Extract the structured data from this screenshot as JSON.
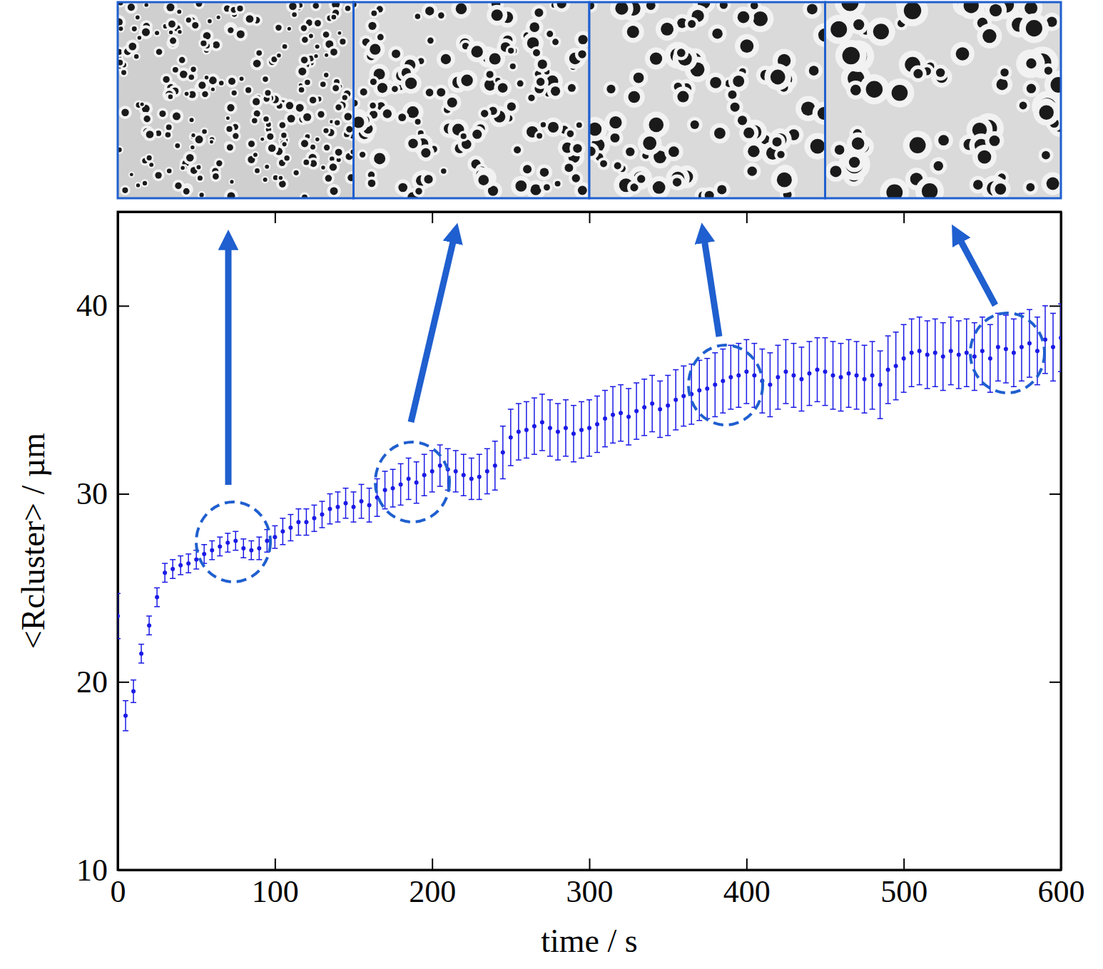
{
  "chart_data": {
    "type": "scatter",
    "xlabel": "time / s",
    "ylabel": "<Rcluster> / µm",
    "xlim": [
      0,
      600
    ],
    "xticks": [
      0,
      100,
      200,
      300,
      400,
      500,
      600
    ],
    "ylim": [
      10,
      45
    ],
    "yticks": [
      10,
      20,
      30,
      40
    ],
    "x": [
      0,
      5,
      10,
      15,
      20,
      25,
      30,
      35,
      40,
      45,
      50,
      55,
      60,
      65,
      70,
      75,
      80,
      85,
      90,
      95,
      100,
      105,
      110,
      115,
      120,
      125,
      130,
      135,
      140,
      145,
      150,
      155,
      160,
      165,
      170,
      175,
      180,
      185,
      190,
      195,
      200,
      205,
      210,
      215,
      220,
      225,
      230,
      235,
      240,
      245,
      250,
      255,
      260,
      265,
      270,
      275,
      280,
      285,
      290,
      295,
      300,
      305,
      310,
      315,
      320,
      325,
      330,
      335,
      340,
      345,
      350,
      355,
      360,
      365,
      370,
      375,
      380,
      385,
      390,
      395,
      400,
      405,
      410,
      415,
      420,
      425,
      430,
      435,
      440,
      445,
      450,
      455,
      460,
      465,
      470,
      475,
      480,
      485,
      490,
      495,
      500,
      505,
      510,
      515,
      520,
      525,
      530,
      535,
      540,
      545,
      550,
      555,
      560,
      565,
      570,
      575,
      580,
      585,
      590,
      595,
      600
    ],
    "series": [
      {
        "color": "#1a1ae6",
        "marker": "circle",
        "values": [
          23.5,
          18.2,
          19.5,
          21.5,
          23,
          24.5,
          25.8,
          26,
          26.2,
          26.3,
          26.5,
          26.8,
          27,
          27.2,
          27.4,
          27.5,
          27.1,
          27,
          27.1,
          27.5,
          27.7,
          28,
          28.2,
          28.5,
          28.5,
          28.7,
          28.9,
          29.2,
          29.3,
          29.5,
          29.3,
          29.6,
          29.4,
          29.8,
          30.2,
          30.3,
          30.5,
          30.8,
          30.6,
          31,
          31.2,
          31.5,
          31.3,
          31.2,
          31,
          30.8,
          30.9,
          31.2,
          31.5,
          32.2,
          33,
          33.3,
          33.4,
          33.6,
          33.8,
          33.5,
          33.3,
          33.5,
          33.2,
          33.4,
          33.5,
          33.7,
          34,
          34.2,
          34.3,
          34.1,
          34.4,
          34.6,
          34.8,
          34.5,
          34.7,
          35,
          35.2,
          35.3,
          35.5,
          35.6,
          35.8,
          36,
          36.2,
          36.3,
          36.5,
          36.3,
          36,
          35.8,
          36.2,
          36.5,
          36.3,
          36.1,
          36.4,
          36.6,
          36.5,
          36.3,
          36.2,
          36.4,
          36.3,
          36.1,
          36.3,
          35.8,
          36.6,
          36.8,
          37.2,
          37.5,
          37.6,
          37.4,
          37.5,
          37.3,
          37.6,
          37.4,
          37.5,
          37.3,
          37.6,
          37.2,
          37.8,
          37.7,
          37.5,
          37.8,
          38,
          37.6,
          38.2,
          37.8,
          38.3
        ],
        "errors": [
          1.2,
          0.8,
          0.6,
          0.5,
          0.5,
          0.5,
          0.5,
          0.5,
          0.5,
          0.5,
          0.5,
          0.5,
          0.5,
          0.5,
          0.5,
          0.5,
          0.5,
          0.5,
          0.6,
          0.6,
          0.6,
          0.7,
          0.7,
          0.7,
          0.7,
          0.7,
          0.7,
          0.8,
          0.8,
          0.8,
          0.8,
          0.9,
          0.9,
          1,
          1,
          1,
          1.1,
          1.1,
          1.1,
          1.1,
          1.1,
          1.1,
          1.1,
          1.1,
          1.1,
          1.1,
          1.2,
          1.2,
          1.3,
          1.4,
          1.5,
          1.5,
          1.5,
          1.5,
          1.5,
          1.5,
          1.5,
          1.5,
          1.5,
          1.5,
          1.5,
          1.5,
          1.5,
          1.5,
          1.5,
          1.5,
          1.5,
          1.5,
          1.5,
          1.5,
          1.6,
          1.6,
          1.6,
          1.6,
          1.6,
          1.6,
          1.7,
          1.7,
          1.7,
          1.7,
          1.7,
          1.7,
          1.7,
          1.7,
          1.7,
          1.7,
          1.7,
          1.7,
          1.7,
          1.7,
          1.8,
          1.8,
          1.8,
          1.8,
          1.8,
          1.8,
          1.8,
          1.8,
          1.8,
          1.8,
          1.8,
          1.8,
          1.8,
          1.8,
          1.8,
          1.8,
          1.8,
          1.8,
          1.8,
          1.8,
          1.8,
          1.8,
          1.8,
          1.8,
          1.8,
          1.8,
          1.8,
          1.8,
          1.8,
          1.8,
          1.8
        ]
      }
    ]
  }
}
